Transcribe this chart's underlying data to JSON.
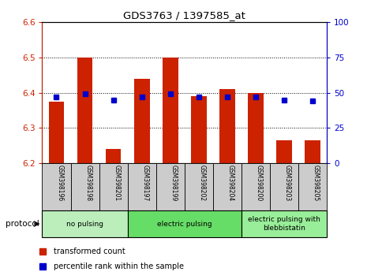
{
  "title": "GDS3763 / 1397585_at",
  "samples": [
    "GSM398196",
    "GSM398198",
    "GSM398201",
    "GSM398197",
    "GSM398199",
    "GSM398202",
    "GSM398204",
    "GSM398200",
    "GSM398203",
    "GSM398205"
  ],
  "transformed_counts": [
    6.375,
    6.5,
    6.24,
    6.44,
    6.5,
    6.39,
    6.41,
    6.4,
    6.265,
    6.265
  ],
  "percentile_ranks": [
    47,
    49,
    45,
    47,
    49,
    47,
    47,
    47,
    45,
    44
  ],
  "ylim": [
    6.2,
    6.6
  ],
  "ylim_right": [
    0,
    100
  ],
  "yticks_left": [
    6.2,
    6.3,
    6.4,
    6.5,
    6.6
  ],
  "yticks_right": [
    0,
    25,
    50,
    75,
    100
  ],
  "bar_color": "#cc2200",
  "dot_color": "#0000cc",
  "bar_bottom": 6.2,
  "groups": [
    {
      "label": "no pulsing",
      "start": 0,
      "end": 3,
      "color": "#bbeebb"
    },
    {
      "label": "electric pulsing",
      "start": 3,
      "end": 7,
      "color": "#66dd66"
    },
    {
      "label": "electric pulsing with\nblebbistatin",
      "start": 7,
      "end": 10,
      "color": "#99ee99"
    }
  ],
  "legend_items": [
    {
      "label": "transformed count",
      "color": "#cc2200"
    },
    {
      "label": "percentile rank within the sample",
      "color": "#0000cc"
    }
  ],
  "xlabel_protocol": "protocol",
  "grid_color": "black",
  "tick_color_left": "#cc2200",
  "tick_color_right": "#0000cc",
  "bar_width": 0.55,
  "sample_bg_color": "#cccccc"
}
